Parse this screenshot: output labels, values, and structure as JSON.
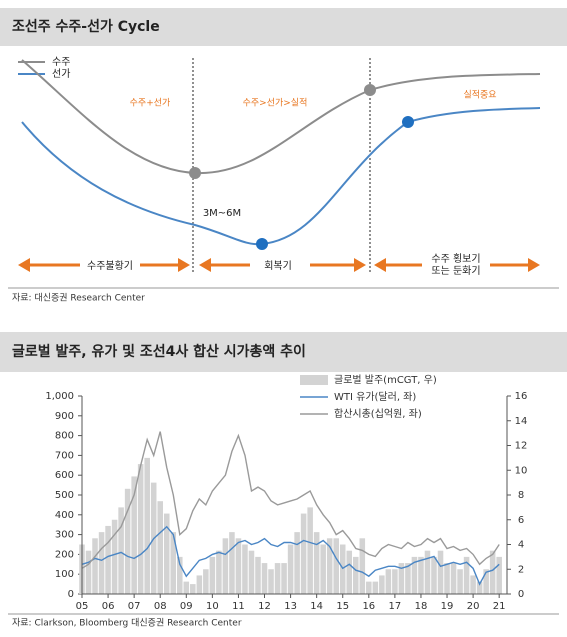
{
  "header1": {
    "title": "조선주 수주-선가 Cycle"
  },
  "diagram": {
    "legend": [
      "수주",
      "선가"
    ],
    "phases": [
      "수주+선가",
      "수주>선가>실적",
      "실적중요"
    ],
    "lag": "3M~6M",
    "periods": [
      "수주불황기",
      "회복기",
      [
        "수주 횡보기",
        "또는 둔화기"
      ]
    ],
    "source": "자료: 대신증권 Research Center"
  },
  "header2": {
    "title": "글로벌 발주, 유가 및 조선4사 합산 시가총액 추이"
  },
  "chart_data": {
    "type": "combo",
    "x": [
      2005,
      2005.25,
      2005.5,
      2005.75,
      2006,
      2006.25,
      2006.5,
      2006.75,
      2007,
      2007.25,
      2007.5,
      2007.75,
      2008,
      2008.25,
      2008.5,
      2008.75,
      2009,
      2009.25,
      2009.5,
      2009.75,
      2010,
      2010.25,
      2010.5,
      2010.75,
      2011,
      2011.25,
      2011.5,
      2011.75,
      2012,
      2012.25,
      2012.5,
      2012.75,
      2013,
      2013.25,
      2013.5,
      2013.75,
      2014,
      2014.25,
      2014.5,
      2014.75,
      2015,
      2015.25,
      2015.5,
      2015.75,
      2016,
      2016.25,
      2016.5,
      2016.75,
      2017,
      2017.25,
      2017.5,
      2017.75,
      2018,
      2018.25,
      2018.5,
      2018.75,
      2019,
      2019.25,
      2019.5,
      2019.75,
      2020,
      2020.25,
      2020.5,
      2020.75,
      2021
    ],
    "xlim": [
      2005,
      2021.3
    ],
    "xticks": [
      {
        "value": 2005,
        "label": "05"
      },
      {
        "value": 2006,
        "label": "06"
      },
      {
        "value": 2007,
        "label": "07"
      },
      {
        "value": 2008,
        "label": "08"
      },
      {
        "value": 2009,
        "label": "09"
      },
      {
        "value": 2010,
        "label": "10"
      },
      {
        "value": 2011,
        "label": "11"
      },
      {
        "value": 2012,
        "label": "12"
      },
      {
        "value": 2013,
        "label": "13"
      },
      {
        "value": 2014,
        "label": "14"
      },
      {
        "value": 2015,
        "label": "15"
      },
      {
        "value": 2016,
        "label": "16"
      },
      {
        "value": 2017,
        "label": "17"
      },
      {
        "value": 2018,
        "label": "18"
      },
      {
        "value": 2019,
        "label": "19"
      },
      {
        "value": 2020,
        "label": "20"
      },
      {
        "value": 2021,
        "label": "21"
      }
    ],
    "ylim": [
      0,
      1000
    ],
    "yticks": [
      0,
      100,
      200,
      300,
      400,
      500,
      600,
      700,
      800,
      900,
      {
        "value": 1000,
        "label": "1,000"
      }
    ],
    "y2lim": [
      0,
      16
    ],
    "y2ticks": [
      0,
      2,
      4,
      6,
      8,
      10,
      12,
      14,
      16
    ],
    "series": [
      {
        "name": "글로벌 발주(mCGT, 우)",
        "type": "bar",
        "axis": "y2",
        "color": "#d3d3d3",
        "values": [
          4.0,
          3.5,
          4.5,
          5.0,
          5.5,
          6.0,
          7.0,
          8.5,
          9.5,
          10.5,
          11.0,
          9.0,
          7.5,
          6.5,
          5.0,
          3.0,
          1.0,
          0.8,
          1.5,
          2.0,
          3.0,
          3.5,
          4.5,
          5.0,
          4.5,
          4.0,
          3.5,
          3.0,
          2.5,
          2.0,
          2.5,
          2.5,
          4.0,
          5.0,
          6.5,
          7.0,
          5.0,
          4.0,
          4.5,
          4.5,
          4.0,
          3.5,
          3.0,
          4.5,
          1.0,
          1.0,
          1.5,
          2.0,
          2.0,
          2.5,
          2.5,
          3.0,
          3.0,
          3.5,
          3.0,
          3.5,
          2.5,
          2.5,
          2.0,
          3.0,
          1.5,
          1.0,
          2.0,
          3.5,
          3.0
        ]
      },
      {
        "name": "WTI 유가(달러, 좌)",
        "type": "line",
        "color": "#4a86c5",
        "values": [
          150,
          160,
          180,
          170,
          190,
          200,
          210,
          190,
          180,
          200,
          230,
          280,
          310,
          340,
          300,
          150,
          90,
          130,
          170,
          180,
          200,
          210,
          200,
          230,
          260,
          270,
          250,
          260,
          280,
          250,
          240,
          260,
          260,
          250,
          270,
          260,
          250,
          270,
          240,
          180,
          130,
          150,
          120,
          110,
          90,
          120,
          130,
          140,
          140,
          130,
          140,
          160,
          170,
          180,
          190,
          140,
          150,
          160,
          150,
          160,
          130,
          50,
          110,
          120,
          150
        ]
      },
      {
        "name": "합산시총(십억원, 좌)",
        "type": "line",
        "color": "#9a9a9a",
        "values": [
          130,
          150,
          190,
          230,
          260,
          300,
          340,
          420,
          500,
          650,
          780,
          700,
          820,
          640,
          500,
          300,
          330,
          420,
          480,
          450,
          520,
          560,
          600,
          720,
          800,
          700,
          520,
          540,
          520,
          470,
          450,
          460,
          470,
          480,
          500,
          520,
          450,
          400,
          360,
          300,
          320,
          280,
          230,
          220,
          200,
          190,
          230,
          250,
          240,
          230,
          260,
          240,
          250,
          280,
          260,
          280,
          230,
          240,
          220,
          230,
          200,
          150,
          180,
          200,
          250
        ]
      }
    ]
  },
  "source2": "자료: Clarkson, Bloomberg 대신증권 Research Center"
}
